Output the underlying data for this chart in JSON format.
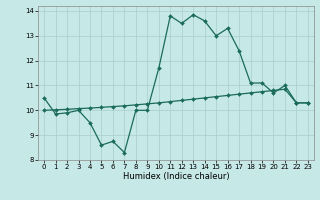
{
  "title": "",
  "xlabel": "Humidex (Indice chaleur)",
  "xlim": [
    -0.5,
    23.5
  ],
  "ylim": [
    8,
    14.2
  ],
  "yticks": [
    8,
    9,
    10,
    11,
    12,
    13,
    14
  ],
  "xticks": [
    0,
    1,
    2,
    3,
    4,
    5,
    6,
    7,
    8,
    9,
    10,
    11,
    12,
    13,
    14,
    15,
    16,
    17,
    18,
    19,
    20,
    21,
    22,
    23
  ],
  "bg_color": "#c6e8e6",
  "line_color": "#1a6b5a",
  "grid_color": "#a8cece",
  "curve1_x": [
    0,
    1,
    2,
    3,
    4,
    5,
    6,
    7,
    8,
    9,
    10,
    11,
    12,
    13,
    14,
    15,
    16,
    17,
    18,
    19,
    20,
    21,
    22,
    23
  ],
  "curve1_y": [
    10.5,
    9.85,
    9.9,
    10.0,
    9.5,
    8.6,
    8.75,
    8.3,
    10.0,
    10.0,
    11.7,
    13.8,
    13.5,
    13.85,
    13.6,
    13.0,
    13.3,
    12.4,
    11.1,
    11.1,
    10.7,
    11.0,
    10.3,
    10.3
  ],
  "curve2_x": [
    0,
    1,
    2,
    3,
    4,
    5,
    6,
    7,
    8,
    9,
    10,
    11,
    12,
    13,
    14,
    15,
    16,
    17,
    18,
    19,
    20,
    21,
    22,
    23
  ],
  "curve2_y": [
    10.0,
    10.02,
    10.04,
    10.07,
    10.09,
    10.12,
    10.15,
    10.18,
    10.22,
    10.26,
    10.3,
    10.35,
    10.4,
    10.45,
    10.5,
    10.55,
    10.6,
    10.65,
    10.7,
    10.75,
    10.8,
    10.85,
    10.3,
    10.3
  ],
  "marker_size": 2.0,
  "line_width": 0.9,
  "tick_fontsize": 5.0,
  "xlabel_fontsize": 6.0
}
